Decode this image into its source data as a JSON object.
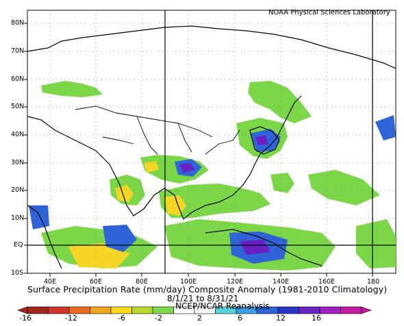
{
  "header": {
    "lab": "NOAA Physical Sciences Laboratory"
  },
  "title": "Surface Precipitation Rate (mm/day) Composite Anomaly (1981-2010 Climatology)",
  "date_range": "8/1/21  to 8/31/21",
  "source": "NCEP/NCAR Reanalysis",
  "axes": {
    "lat_ticks": [
      "80N",
      "70N",
      "60N",
      "50N",
      "40N",
      "30N",
      "20N",
      "10N",
      "EQ",
      "10S"
    ],
    "lon_ticks": [
      "40E",
      "60E",
      "80E",
      "100E",
      "120E",
      "140E",
      "160E",
      "180"
    ]
  },
  "colorbar": {
    "labels": [
      "-16",
      "-12",
      "-6",
      "-2",
      "2",
      "6",
      "12",
      "16"
    ],
    "colors": [
      "#a0261e",
      "#d1352a",
      "#e86a1f",
      "#f2a51c",
      "#f8d91a",
      "#b8d82c",
      "#7fd84a",
      "#ffffff",
      "#ffffff",
      "#57d3dc",
      "#3aa0e6",
      "#2e62d6",
      "#2a35c8",
      "#6a22c4",
      "#a11fc0",
      "#c21ca5"
    ]
  },
  "regions": {
    "dry": "#f5d624",
    "wet": "#7bd748",
    "strong_wet": "#2f64d8",
    "very_wet": "#6a1fc4"
  }
}
